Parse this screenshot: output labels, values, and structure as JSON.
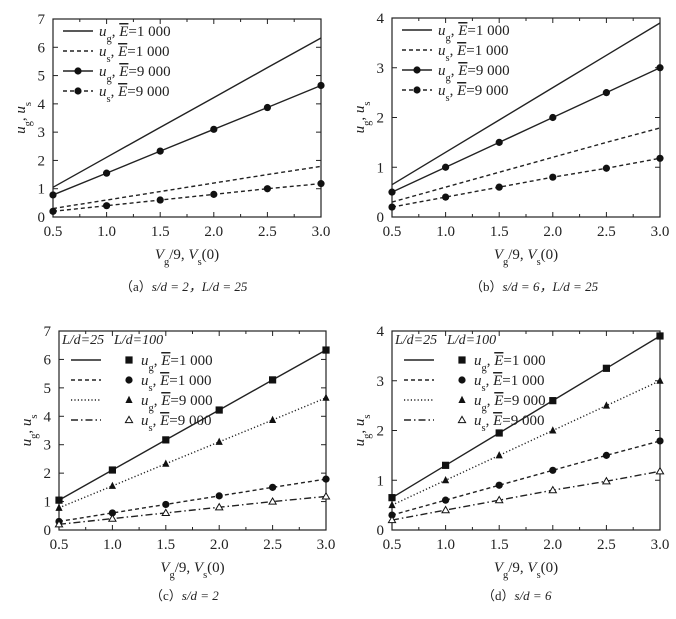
{
  "chart_data": [
    {
      "type": "line",
      "id": "a",
      "caption": {
        "prefix": "（a）",
        "text": "s/d = 2，L/d = 25"
      },
      "xlabel": [
        {
          "t": "V",
          "i": true
        },
        {
          "t": "g",
          "sub": true
        },
        {
          "t": "/9, "
        },
        {
          "t": "V",
          "i": true
        },
        {
          "t": "s",
          "sub": true
        },
        {
          "t": "(0)"
        }
      ],
      "ylabel": [
        {
          "t": "u",
          "i": true
        },
        {
          "t": "g",
          "sub": true
        },
        {
          "t": ", "
        },
        {
          "t": "u",
          "i": true
        },
        {
          "t": "s",
          "sub": true
        }
      ],
      "xlim": [
        0.5,
        3.0
      ],
      "ylim": [
        0,
        7
      ],
      "xticks": [
        "0.5",
        "1.0",
        "1.5",
        "2.0",
        "2.5",
        "3.0"
      ],
      "yticks": [
        "0",
        "1",
        "2",
        "3",
        "4",
        "5",
        "6",
        "7"
      ],
      "x": [
        0.5,
        1.0,
        1.5,
        2.0,
        2.5,
        3.0
      ],
      "legend_header": null,
      "series": [
        {
          "var": "u",
          "sub": "g",
          "E": "1 000",
          "line": "solid",
          "marker": "none",
          "values": [
            1.05,
            2.11,
            3.17,
            4.22,
            5.28,
            6.33
          ]
        },
        {
          "var": "u",
          "sub": "s",
          "E": "1 000",
          "line": "dashed",
          "marker": "none",
          "values": [
            0.3,
            0.6,
            0.9,
            1.2,
            1.5,
            1.79
          ]
        },
        {
          "var": "u",
          "sub": "g",
          "E": "9 000",
          "line": "solid",
          "marker": "circle",
          "values": [
            0.78,
            1.55,
            2.33,
            3.1,
            3.87,
            4.65
          ]
        },
        {
          "var": "u",
          "sub": "s",
          "E": "9 000",
          "line": "dashed",
          "marker": "circle",
          "values": [
            0.2,
            0.4,
            0.6,
            0.8,
            1.0,
            1.18
          ]
        }
      ]
    },
    {
      "type": "line",
      "id": "b",
      "caption": {
        "prefix": "（b）",
        "text": "s/d = 6，L/d = 25"
      },
      "xlabel": [
        {
          "t": "V",
          "i": true
        },
        {
          "t": "g",
          "sub": true
        },
        {
          "t": "/9, "
        },
        {
          "t": "V",
          "i": true
        },
        {
          "t": "s",
          "sub": true
        },
        {
          "t": "(0)"
        }
      ],
      "ylabel": [
        {
          "t": "u",
          "i": true
        },
        {
          "t": "g",
          "sub": true
        },
        {
          "t": ", "
        },
        {
          "t": "u",
          "i": true
        },
        {
          "t": "s",
          "sub": true
        }
      ],
      "xlim": [
        0.5,
        3.0
      ],
      "ylim": [
        0,
        4
      ],
      "xticks": [
        "0.5",
        "1.0",
        "1.5",
        "2.0",
        "2.5",
        "3.0"
      ],
      "yticks": [
        "0",
        "1",
        "2",
        "3",
        "4"
      ],
      "x": [
        0.5,
        1.0,
        1.5,
        2.0,
        2.5,
        3.0
      ],
      "legend_header": null,
      "series": [
        {
          "var": "u",
          "sub": "g",
          "E": "1 000",
          "line": "solid",
          "marker": "none",
          "values": [
            0.65,
            1.3,
            1.95,
            2.6,
            3.25,
            3.9
          ]
        },
        {
          "var": "u",
          "sub": "s",
          "E": "1 000",
          "line": "dashed",
          "marker": "none",
          "values": [
            0.3,
            0.6,
            0.9,
            1.2,
            1.5,
            1.79
          ]
        },
        {
          "var": "u",
          "sub": "g",
          "E": "9 000",
          "line": "solid",
          "marker": "circle",
          "values": [
            0.5,
            1.0,
            1.5,
            2.0,
            2.5,
            3.0
          ]
        },
        {
          "var": "u",
          "sub": "s",
          "E": "9 000",
          "line": "dashed",
          "marker": "circle",
          "values": [
            0.2,
            0.4,
            0.6,
            0.8,
            0.98,
            1.18
          ]
        }
      ]
    },
    {
      "type": "line",
      "id": "c",
      "caption": {
        "prefix": "（c）",
        "text": "s/d = 2"
      },
      "xlabel": [
        {
          "t": "V",
          "i": true
        },
        {
          "t": "g",
          "sub": true
        },
        {
          "t": "/9, "
        },
        {
          "t": "V",
          "i": true
        },
        {
          "t": "s",
          "sub": true
        },
        {
          "t": "(0)"
        }
      ],
      "ylabel": [
        {
          "t": "u",
          "i": true
        },
        {
          "t": "g",
          "sub": true
        },
        {
          "t": ", "
        },
        {
          "t": "u",
          "i": true
        },
        {
          "t": "s",
          "sub": true
        }
      ],
      "xlim": [
        0.5,
        3.0
      ],
      "ylim": [
        0,
        7
      ],
      "xticks": [
        "0.5",
        "1.0",
        "1.5",
        "2.0",
        "2.5",
        "3.0"
      ],
      "yticks": [
        "0",
        "1",
        "2",
        "3",
        "4",
        "5",
        "6",
        "7"
      ],
      "x": [
        0.5,
        1.0,
        1.5,
        2.0,
        2.5,
        3.0
      ],
      "legend_header": [
        "L/d=25",
        "L/d=100"
      ],
      "series": [
        {
          "var": "u",
          "sub": "g",
          "E": "1 000",
          "line": "solid",
          "marker": "square",
          "values": [
            1.05,
            2.11,
            3.17,
            4.22,
            5.28,
            6.33
          ]
        },
        {
          "var": "u",
          "sub": "s",
          "E": "1 000",
          "line": "dashed",
          "marker": "circle",
          "values": [
            0.3,
            0.6,
            0.9,
            1.2,
            1.5,
            1.79
          ]
        },
        {
          "var": "u",
          "sub": "g",
          "E": "9 000",
          "line": "dotted",
          "marker": "triangle",
          "values": [
            0.78,
            1.55,
            2.33,
            3.1,
            3.87,
            4.65
          ]
        },
        {
          "var": "u",
          "sub": "s",
          "E": "9 000",
          "line": "dashdot",
          "marker": "open-triangle",
          "values": [
            0.2,
            0.4,
            0.6,
            0.8,
            1.0,
            1.18
          ]
        }
      ]
    },
    {
      "type": "line",
      "id": "d",
      "caption": {
        "prefix": "（d）",
        "text": "s/d = 6"
      },
      "xlabel": [
        {
          "t": "V",
          "i": true
        },
        {
          "t": "g",
          "sub": true
        },
        {
          "t": "/9, "
        },
        {
          "t": "V",
          "i": true
        },
        {
          "t": "s",
          "sub": true
        },
        {
          "t": "(0)"
        }
      ],
      "ylabel": [
        {
          "t": "u",
          "i": true
        },
        {
          "t": "g",
          "sub": true
        },
        {
          "t": ", "
        },
        {
          "t": "u",
          "i": true
        },
        {
          "t": "s",
          "sub": true
        }
      ],
      "xlim": [
        0.5,
        3.0
      ],
      "ylim": [
        0,
        4
      ],
      "xticks": [
        "0.5",
        "1.0",
        "1.5",
        "2.0",
        "2.5",
        "3.0"
      ],
      "yticks": [
        "0",
        "1",
        "2",
        "3",
        "4"
      ],
      "x": [
        0.5,
        1.0,
        1.5,
        2.0,
        2.5,
        3.0
      ],
      "legend_header": [
        "L/d=25",
        "L/d=100"
      ],
      "series": [
        {
          "var": "u",
          "sub": "g",
          "E": "1 000",
          "line": "solid",
          "marker": "square",
          "values": [
            0.65,
            1.3,
            1.95,
            2.6,
            3.25,
            3.9
          ]
        },
        {
          "var": "u",
          "sub": "s",
          "E": "1 000",
          "line": "dashed",
          "marker": "circle",
          "values": [
            0.3,
            0.6,
            0.9,
            1.2,
            1.5,
            1.79
          ]
        },
        {
          "var": "u",
          "sub": "g",
          "E": "9 000",
          "line": "dotted",
          "marker": "triangle",
          "values": [
            0.5,
            1.0,
            1.5,
            2.0,
            2.5,
            3.0
          ]
        },
        {
          "var": "u",
          "sub": "s",
          "E": "9 000",
          "line": "dashdot",
          "marker": "open-triangle",
          "values": [
            0.2,
            0.4,
            0.6,
            0.8,
            0.98,
            1.18
          ]
        }
      ]
    }
  ]
}
